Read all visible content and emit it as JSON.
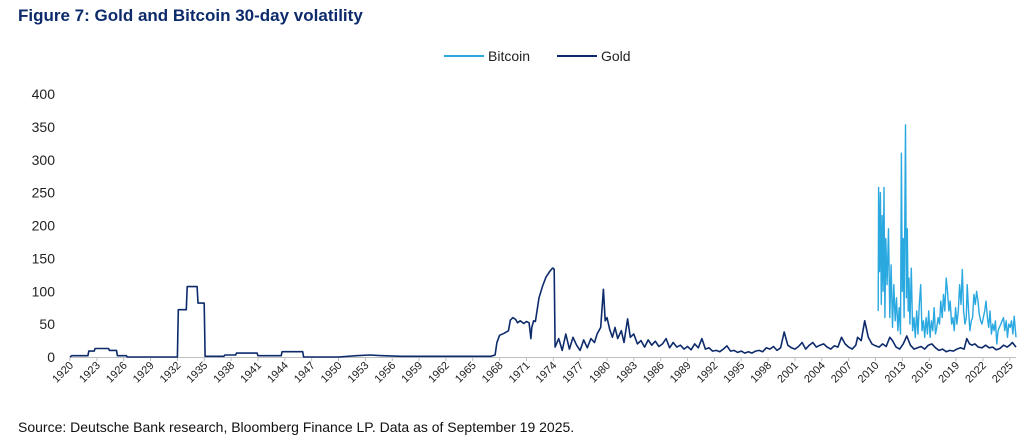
{
  "title": "Figure 7: Gold and Bitcoin 30-day volatility",
  "source": "Source: Deutsche Bank research, Bloomberg Finance LP. Data as of September 19 2025.",
  "chart_data": {
    "type": "line",
    "title": "Figure 7: Gold and Bitcoin 30-day volatility",
    "xlabel": "",
    "ylabel": "",
    "xlim": [
      1920,
      2025.7
    ],
    "ylim": [
      0,
      400
    ],
    "yticks": [
      0,
      50,
      100,
      150,
      200,
      250,
      300,
      350,
      400
    ],
    "xticks": [
      "1920",
      "1923",
      "1926",
      "1929",
      "1932",
      "1935",
      "1938",
      "1941",
      "1944",
      "1947",
      "1950",
      "1953",
      "1956",
      "1959",
      "1962",
      "1965",
      "1968",
      "1971",
      "1974",
      "1977",
      "1980",
      "1983",
      "1986",
      "1989",
      "1992",
      "1995",
      "1998",
      "2001",
      "2004",
      "2007",
      "2010",
      "2013",
      "2016",
      "2019",
      "2022",
      "2025"
    ],
    "grid": false,
    "legend_position": "top-center",
    "series": [
      {
        "name": "Gold",
        "color": "#0d2b6b",
        "points": [
          [
            1920.0,
            0
          ],
          [
            1920.2,
            2
          ],
          [
            1922.0,
            2
          ],
          [
            1922.1,
            9
          ],
          [
            1922.7,
            9
          ],
          [
            1922.8,
            13
          ],
          [
            1924.3,
            13
          ],
          [
            1924.4,
            10
          ],
          [
            1925.2,
            10
          ],
          [
            1925.3,
            2
          ],
          [
            1926.3,
            2
          ],
          [
            1926.4,
            0
          ],
          [
            1932.0,
            0
          ],
          [
            1932.1,
            72
          ],
          [
            1933.0,
            72
          ],
          [
            1933.1,
            107
          ],
          [
            1934.2,
            107
          ],
          [
            1934.3,
            82
          ],
          [
            1935.0,
            82
          ],
          [
            1935.1,
            1
          ],
          [
            1937.2,
            1
          ],
          [
            1937.3,
            3
          ],
          [
            1938.5,
            3
          ],
          [
            1938.6,
            6
          ],
          [
            1940.9,
            6
          ],
          [
            1941.0,
            2
          ],
          [
            1943.6,
            2
          ],
          [
            1943.7,
            8
          ],
          [
            1946.0,
            8
          ],
          [
            1946.1,
            0
          ],
          [
            1950.0,
            0
          ],
          [
            1952.0,
            2
          ],
          [
            1953.5,
            3
          ],
          [
            1955.0,
            2
          ],
          [
            1957.0,
            1
          ],
          [
            1960.0,
            1
          ],
          [
            1962.0,
            1
          ],
          [
            1965.0,
            1
          ],
          [
            1967.0,
            1
          ],
          [
            1967.5,
            3
          ],
          [
            1967.7,
            22
          ],
          [
            1968.0,
            33
          ],
          [
            1968.5,
            36
          ],
          [
            1969.0,
            40
          ],
          [
            1969.2,
            56
          ],
          [
            1969.5,
            60
          ],
          [
            1969.8,
            57
          ],
          [
            1970.0,
            52
          ],
          [
            1970.3,
            55
          ],
          [
            1970.7,
            51
          ],
          [
            1971.0,
            54
          ],
          [
            1971.3,
            52
          ],
          [
            1971.5,
            28
          ],
          [
            1971.6,
            45
          ],
          [
            1971.8,
            55
          ],
          [
            1972.0,
            54
          ],
          [
            1972.4,
            90
          ],
          [
            1972.8,
            108
          ],
          [
            1973.2,
            122
          ],
          [
            1973.6,
            130
          ],
          [
            1973.9,
            135
          ],
          [
            1974.0,
            135
          ],
          [
            1974.1,
            133
          ],
          [
            1974.2,
            15
          ],
          [
            1974.6,
            28
          ],
          [
            1975.0,
            10
          ],
          [
            1975.4,
            35
          ],
          [
            1975.8,
            12
          ],
          [
            1976.2,
            30
          ],
          [
            1976.6,
            18
          ],
          [
            1977.0,
            10
          ],
          [
            1977.4,
            26
          ],
          [
            1977.8,
            14
          ],
          [
            1978.2,
            28
          ],
          [
            1978.6,
            22
          ],
          [
            1978.9,
            35
          ],
          [
            1979.3,
            45
          ],
          [
            1979.6,
            103
          ],
          [
            1979.8,
            55
          ],
          [
            1980.0,
            60
          ],
          [
            1980.3,
            42
          ],
          [
            1980.6,
            30
          ],
          [
            1980.9,
            45
          ],
          [
            1981.2,
            28
          ],
          [
            1981.6,
            40
          ],
          [
            1981.9,
            22
          ],
          [
            1982.3,
            58
          ],
          [
            1982.6,
            30
          ],
          [
            1983.0,
            35
          ],
          [
            1983.4,
            20
          ],
          [
            1983.8,
            25
          ],
          [
            1984.2,
            15
          ],
          [
            1984.6,
            26
          ],
          [
            1985.0,
            18
          ],
          [
            1985.4,
            24
          ],
          [
            1985.8,
            16
          ],
          [
            1986.2,
            20
          ],
          [
            1986.6,
            28
          ],
          [
            1987.0,
            14
          ],
          [
            1987.4,
            22
          ],
          [
            1987.8,
            15
          ],
          [
            1988.2,
            18
          ],
          [
            1988.6,
            12
          ],
          [
            1989.0,
            16
          ],
          [
            1989.4,
            11
          ],
          [
            1989.8,
            20
          ],
          [
            1990.2,
            14
          ],
          [
            1990.6,
            28
          ],
          [
            1991.0,
            12
          ],
          [
            1991.4,
            14
          ],
          [
            1991.8,
            9
          ],
          [
            1992.2,
            10
          ],
          [
            1992.6,
            8
          ],
          [
            1993.0,
            12
          ],
          [
            1993.4,
            17
          ],
          [
            1993.8,
            9
          ],
          [
            1994.2,
            10
          ],
          [
            1994.6,
            7
          ],
          [
            1995.0,
            9
          ],
          [
            1995.4,
            6
          ],
          [
            1995.8,
            8
          ],
          [
            1996.2,
            6
          ],
          [
            1996.6,
            9
          ],
          [
            1997.0,
            10
          ],
          [
            1997.4,
            8
          ],
          [
            1997.8,
            14
          ],
          [
            1998.2,
            12
          ],
          [
            1998.6,
            16
          ],
          [
            1999.0,
            10
          ],
          [
            1999.4,
            14
          ],
          [
            1999.8,
            38
          ],
          [
            2000.2,
            18
          ],
          [
            2000.6,
            14
          ],
          [
            2001.0,
            12
          ],
          [
            2001.4,
            16
          ],
          [
            2001.8,
            22
          ],
          [
            2002.2,
            12
          ],
          [
            2002.6,
            18
          ],
          [
            2003.0,
            22
          ],
          [
            2003.4,
            15
          ],
          [
            2003.8,
            18
          ],
          [
            2004.2,
            20
          ],
          [
            2004.6,
            15
          ],
          [
            2005.0,
            12
          ],
          [
            2005.4,
            17
          ],
          [
            2005.8,
            15
          ],
          [
            2006.2,
            30
          ],
          [
            2006.6,
            20
          ],
          [
            2007.0,
            15
          ],
          [
            2007.4,
            12
          ],
          [
            2007.8,
            18
          ],
          [
            2008.0,
            30
          ],
          [
            2008.4,
            25
          ],
          [
            2008.8,
            55
          ],
          [
            2009.2,
            30
          ],
          [
            2009.6,
            20
          ],
          [
            2010.0,
            17
          ],
          [
            2010.4,
            15
          ],
          [
            2010.8,
            20
          ],
          [
            2011.2,
            16
          ],
          [
            2011.6,
            30
          ],
          [
            2011.9,
            25
          ],
          [
            2012.3,
            15
          ],
          [
            2012.7,
            12
          ],
          [
            2013.1,
            20
          ],
          [
            2013.5,
            32
          ],
          [
            2013.9,
            18
          ],
          [
            2014.3,
            12
          ],
          [
            2014.7,
            14
          ],
          [
            2015.1,
            16
          ],
          [
            2015.5,
            12
          ],
          [
            2015.9,
            18
          ],
          [
            2016.3,
            20
          ],
          [
            2016.7,
            14
          ],
          [
            2017.1,
            10
          ],
          [
            2017.5,
            12
          ],
          [
            2017.9,
            8
          ],
          [
            2018.3,
            10
          ],
          [
            2018.7,
            9
          ],
          [
            2019.1,
            12
          ],
          [
            2019.5,
            14
          ],
          [
            2019.9,
            12
          ],
          [
            2020.2,
            28
          ],
          [
            2020.5,
            20
          ],
          [
            2020.8,
            18
          ],
          [
            2021.1,
            20
          ],
          [
            2021.5,
            15
          ],
          [
            2021.9,
            14
          ],
          [
            2022.3,
            18
          ],
          [
            2022.7,
            14
          ],
          [
            2023.1,
            15
          ],
          [
            2023.5,
            11
          ],
          [
            2023.9,
            13
          ],
          [
            2024.3,
            18
          ],
          [
            2024.7,
            15
          ],
          [
            2025.0,
            18
          ],
          [
            2025.3,
            22
          ],
          [
            2025.7,
            15
          ]
        ]
      },
      {
        "name": "Bitcoin",
        "color": "#2aa8e0",
        "points": [
          [
            2010.3,
            70
          ],
          [
            2010.35,
            258
          ],
          [
            2010.45,
            130
          ],
          [
            2010.55,
            250
          ],
          [
            2010.65,
            80
          ],
          [
            2010.75,
            215
          ],
          [
            2010.85,
            100
          ],
          [
            2010.95,
            258
          ],
          [
            2011.05,
            60
          ],
          [
            2011.15,
            180
          ],
          [
            2011.3,
            110
          ],
          [
            2011.45,
            195
          ],
          [
            2011.6,
            60
          ],
          [
            2011.75,
            140
          ],
          [
            2011.9,
            45
          ],
          [
            2012.05,
            110
          ],
          [
            2012.2,
            55
          ],
          [
            2012.35,
            90
          ],
          [
            2012.5,
            40
          ],
          [
            2012.65,
            75
          ],
          [
            2012.8,
            35
          ],
          [
            2012.9,
            310
          ],
          [
            2013.0,
            100
          ],
          [
            2013.1,
            180
          ],
          [
            2013.2,
            60
          ],
          [
            2013.35,
            353
          ],
          [
            2013.45,
            90
          ],
          [
            2013.55,
            195
          ],
          [
            2013.65,
            70
          ],
          [
            2013.75,
            120
          ],
          [
            2013.85,
            50
          ],
          [
            2014.0,
            135
          ],
          [
            2014.15,
            40
          ],
          [
            2014.3,
            60
          ],
          [
            2014.45,
            30
          ],
          [
            2014.6,
            70
          ],
          [
            2014.75,
            35
          ],
          [
            2014.9,
            80
          ],
          [
            2015.05,
            110
          ],
          [
            2015.2,
            40
          ],
          [
            2015.35,
            55
          ],
          [
            2015.5,
            30
          ],
          [
            2015.65,
            60
          ],
          [
            2015.8,
            35
          ],
          [
            2015.95,
            70
          ],
          [
            2016.1,
            30
          ],
          [
            2016.25,
            55
          ],
          [
            2016.4,
            40
          ],
          [
            2016.55,
            75
          ],
          [
            2016.7,
            35
          ],
          [
            2016.85,
            45
          ],
          [
            2017.0,
            60
          ],
          [
            2017.15,
            50
          ],
          [
            2017.3,
            85
          ],
          [
            2017.45,
            60
          ],
          [
            2017.6,
            95
          ],
          [
            2017.75,
            70
          ],
          [
            2017.9,
            120
          ],
          [
            2018.05,
            100
          ],
          [
            2018.2,
            70
          ],
          [
            2018.35,
            85
          ],
          [
            2018.5,
            50
          ],
          [
            2018.65,
            60
          ],
          [
            2018.8,
            40
          ],
          [
            2018.95,
            75
          ],
          [
            2019.1,
            50
          ],
          [
            2019.25,
            70
          ],
          [
            2019.4,
            110
          ],
          [
            2019.55,
            80
          ],
          [
            2019.7,
            133
          ],
          [
            2019.85,
            70
          ],
          [
            2020.0,
            50
          ],
          [
            2020.15,
            60
          ],
          [
            2020.25,
            110
          ],
          [
            2020.4,
            70
          ],
          [
            2020.55,
            40
          ],
          [
            2020.7,
            55
          ],
          [
            2020.85,
            60
          ],
          [
            2021.0,
            95
          ],
          [
            2021.15,
            80
          ],
          [
            2021.3,
            100
          ],
          [
            2021.45,
            85
          ],
          [
            2021.6,
            65
          ],
          [
            2021.75,
            55
          ],
          [
            2021.9,
            50
          ],
          [
            2022.05,
            60
          ],
          [
            2022.2,
            70
          ],
          [
            2022.35,
            85
          ],
          [
            2022.5,
            60
          ],
          [
            2022.65,
            45
          ],
          [
            2022.8,
            70
          ],
          [
            2022.95,
            35
          ],
          [
            2023.1,
            50
          ],
          [
            2023.25,
            40
          ],
          [
            2023.4,
            55
          ],
          [
            2023.55,
            20
          ],
          [
            2023.7,
            40
          ],
          [
            2023.85,
            45
          ],
          [
            2024.0,
            50
          ],
          [
            2024.15,
            55
          ],
          [
            2024.3,
            60
          ],
          [
            2024.45,
            40
          ],
          [
            2024.6,
            55
          ],
          [
            2024.75,
            30
          ],
          [
            2024.9,
            50
          ],
          [
            2025.05,
            45
          ],
          [
            2025.2,
            55
          ],
          [
            2025.35,
            35
          ],
          [
            2025.5,
            62
          ],
          [
            2025.7,
            30
          ]
        ]
      }
    ]
  }
}
